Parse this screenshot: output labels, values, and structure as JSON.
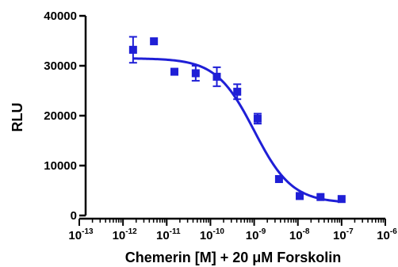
{
  "chart_data": {
    "type": "scatter",
    "xlabel": "Chemerin [M] + 20 μM Forskolin",
    "ylabel": "RLU",
    "x_scale": "log",
    "xlim": [
      1e-13,
      1e-06
    ],
    "ylim": [
      0,
      40000
    ],
    "y_ticks": [
      "0",
      "10000",
      "20000",
      "30000",
      "40000"
    ],
    "x_ticks": [
      {
        "base": "10",
        "exp": "-13"
      },
      {
        "base": "10",
        "exp": "-12"
      },
      {
        "base": "10",
        "exp": "-11"
      },
      {
        "base": "10",
        "exp": "-10"
      },
      {
        "base": "10",
        "exp": "-9"
      },
      {
        "base": "10",
        "exp": "-8"
      },
      {
        "base": "10",
        "exp": "-7"
      },
      {
        "base": "10",
        "exp": "-6"
      }
    ],
    "grid": false,
    "legend": "none",
    "color": "#1f1fd6",
    "series": [
      {
        "points": [
          {
            "x": 1.7e-12,
            "y": 33200,
            "err": 2600
          },
          {
            "x": 5.1e-12,
            "y": 34900,
            "err": 0
          },
          {
            "x": 1.5e-11,
            "y": 28800,
            "err": 0
          },
          {
            "x": 4.6e-11,
            "y": 28500,
            "err": 1500
          },
          {
            "x": 1.4e-10,
            "y": 27800,
            "err": 1900
          },
          {
            "x": 4.1e-10,
            "y": 24800,
            "err": 1500
          },
          {
            "x": 1.2e-09,
            "y": 19400,
            "err": 1000
          },
          {
            "x": 3.7e-09,
            "y": 7300,
            "err": 0
          },
          {
            "x": 1.1e-08,
            "y": 3900,
            "err": 0
          },
          {
            "x": 3.3e-08,
            "y": 3700,
            "err": 0
          },
          {
            "x": 1e-07,
            "y": 3300,
            "err": 0
          }
        ],
        "fit": {
          "model": "sigmoidal-dose-response",
          "top": 31500,
          "bottom": 2500,
          "log_ec50": -9.0,
          "hill": -1.0,
          "x_from": 1.7e-12,
          "x_to": 1e-07
        }
      }
    ]
  }
}
